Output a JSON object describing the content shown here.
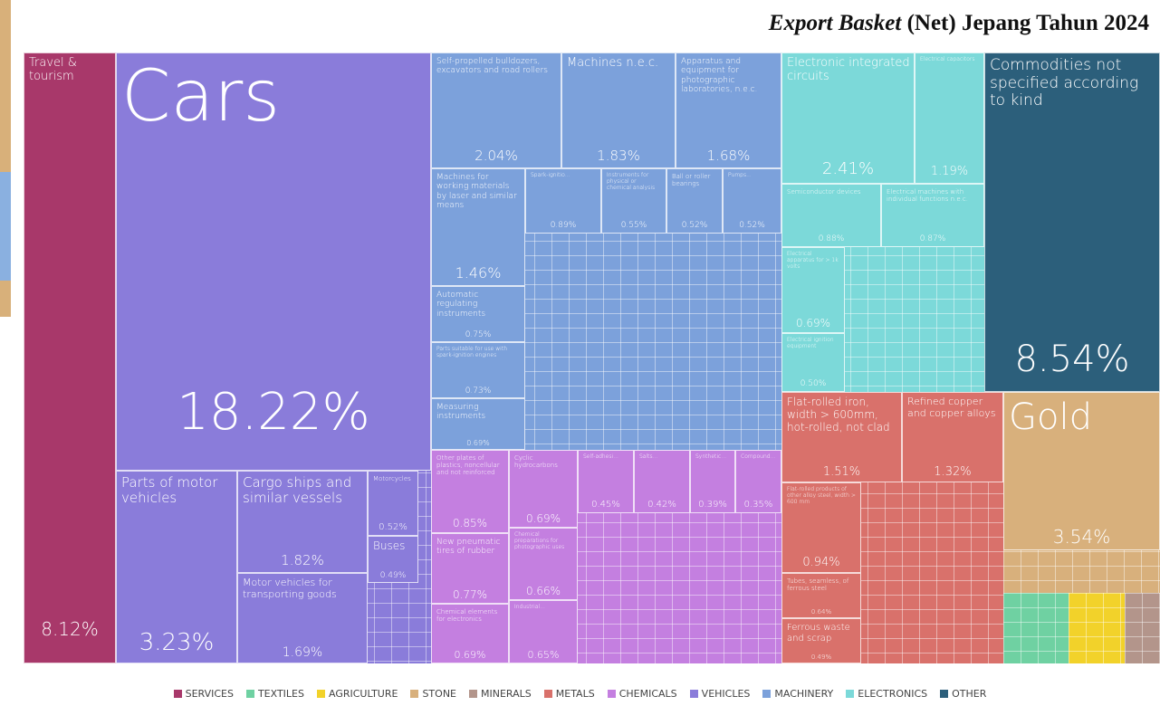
{
  "chart_data": {
    "type": "treemap",
    "title_parts": [
      "Export Basket",
      "(Net) Jepang Tahun 2024"
    ],
    "sectors": [
      {
        "name": "SERVICES",
        "color": "#a8386a"
      },
      {
        "name": "TEXTILES",
        "color": "#6fd1a2"
      },
      {
        "name": "AGRICULTURE",
        "color": "#f2d22a"
      },
      {
        "name": "STONE",
        "color": "#d8b07c"
      },
      {
        "name": "MINERALS",
        "color": "#b3958b"
      },
      {
        "name": "METALS",
        "color": "#d9716b"
      },
      {
        "name": "CHEMICALS",
        "color": "#c47fe0"
      },
      {
        "name": "VEHICLES",
        "color": "#8a7cda"
      },
      {
        "name": "MACHINERY",
        "color": "#7ca1db"
      },
      {
        "name": "ELECTRONICS",
        "color": "#7cd9d9"
      },
      {
        "name": "OTHER",
        "color": "#2c5f7b"
      }
    ],
    "categories": [
      "Travel & tourism",
      "Cars",
      "Parts of motor vehicles",
      "Cargo ships and similar vessels",
      "Motor vehicles for transporting goods",
      "Motorcycles",
      "Buses",
      "Self-propelled bulldozers, excavators and road rollers",
      "Machines n.e.c.",
      "Apparatus and equipment for photographic laboratories, n.e.c.",
      "Machines for working materials by laser and similar means",
      "Automatic regulating instruments",
      "Parts suitable for use with spark-ignition engines",
      "Measuring instruments",
      "Spark-ignitio...",
      "Instruments for physical or chemical analysis",
      "Ball or roller bearings",
      "Pumps...",
      "Electronic integrated circuits",
      "Electrical capacitors",
      "Semiconductor devices",
      "Electrical machines with individual functions n.e.c.",
      "Electrical apparatus for > 1k volts",
      "Electrical ignition equipment",
      "Commodities not specified according to kind",
      "Gold",
      "Flat-rolled iron, width > 600mm, hot-rolled, not clad",
      "Refined copper and copper alloys",
      "Flat-rolled products of other alloy steel, width > 600 mm",
      "Tubes, seamless, of ferrous steel",
      "Ferrous waste and scrap",
      "Other plates of plastics, noncellular and not reinforced",
      "New pneumatic tires of rubber",
      "Chemical elements for electronics",
      "Cyclic hydrocarbons",
      "Chemical preparations for photographic uses",
      "Industrial...",
      "Self-adhesi...",
      "Salts...",
      "Synthetic...",
      "Compound..."
    ],
    "values": [
      8.12,
      18.22,
      3.23,
      1.82,
      1.69,
      0.52,
      0.49,
      2.04,
      1.83,
      1.68,
      1.46,
      0.75,
      0.73,
      0.69,
      0.89,
      0.55,
      0.52,
      0.52,
      2.41,
      1.19,
      0.88,
      0.87,
      0.69,
      0.5,
      8.54,
      3.54,
      1.51,
      1.32,
      0.94,
      0.64,
      0.49,
      0.85,
      0.77,
      0.69,
      0.69,
      0.66,
      0.65,
      0.45,
      0.42,
      0.39,
      0.35
    ],
    "value_labels": [
      "8.12%",
      "18.22%",
      "3.23%",
      "1.82%",
      "1.69%",
      "0.52%",
      "0.49%",
      "2.04%",
      "1.83%",
      "1.68%",
      "1.46%",
      "0.75%",
      "0.73%",
      "0.69%",
      "0.89%",
      "0.55%",
      "0.52%",
      "0.52%",
      "2.41%",
      "1.19%",
      "0.88%",
      "0.87%",
      "0.69%",
      "0.50%",
      "8.54%",
      "3.54%",
      "1.51%",
      "1.32%",
      "0.94%",
      "0.64%",
      "0.49%",
      "0.85%",
      "0.77%",
      "0.69%",
      "0.69%",
      "0.66%",
      "0.65%",
      "0.45%",
      "0.42%",
      "0.39%",
      "0.35%"
    ],
    "tile_sector": [
      "SERVICES",
      "VEHICLES",
      "VEHICLES",
      "VEHICLES",
      "VEHICLES",
      "VEHICLES",
      "VEHICLES",
      "MACHINERY",
      "MACHINERY",
      "MACHINERY",
      "MACHINERY",
      "MACHINERY",
      "MACHINERY",
      "MACHINERY",
      "MACHINERY",
      "MACHINERY",
      "MACHINERY",
      "MACHINERY",
      "ELECTRONICS",
      "ELECTRONICS",
      "ELECTRONICS",
      "ELECTRONICS",
      "ELECTRONICS",
      "ELECTRONICS",
      "OTHER",
      "STONE",
      "METALS",
      "METALS",
      "METALS",
      "METALS",
      "METALS",
      "CHEMICALS",
      "CHEMICALS",
      "CHEMICALS",
      "CHEMICALS",
      "CHEMICALS",
      "CHEMICALS",
      "CHEMICALS",
      "CHEMICALS",
      "CHEMICALS",
      "CHEMICALS"
    ]
  }
}
